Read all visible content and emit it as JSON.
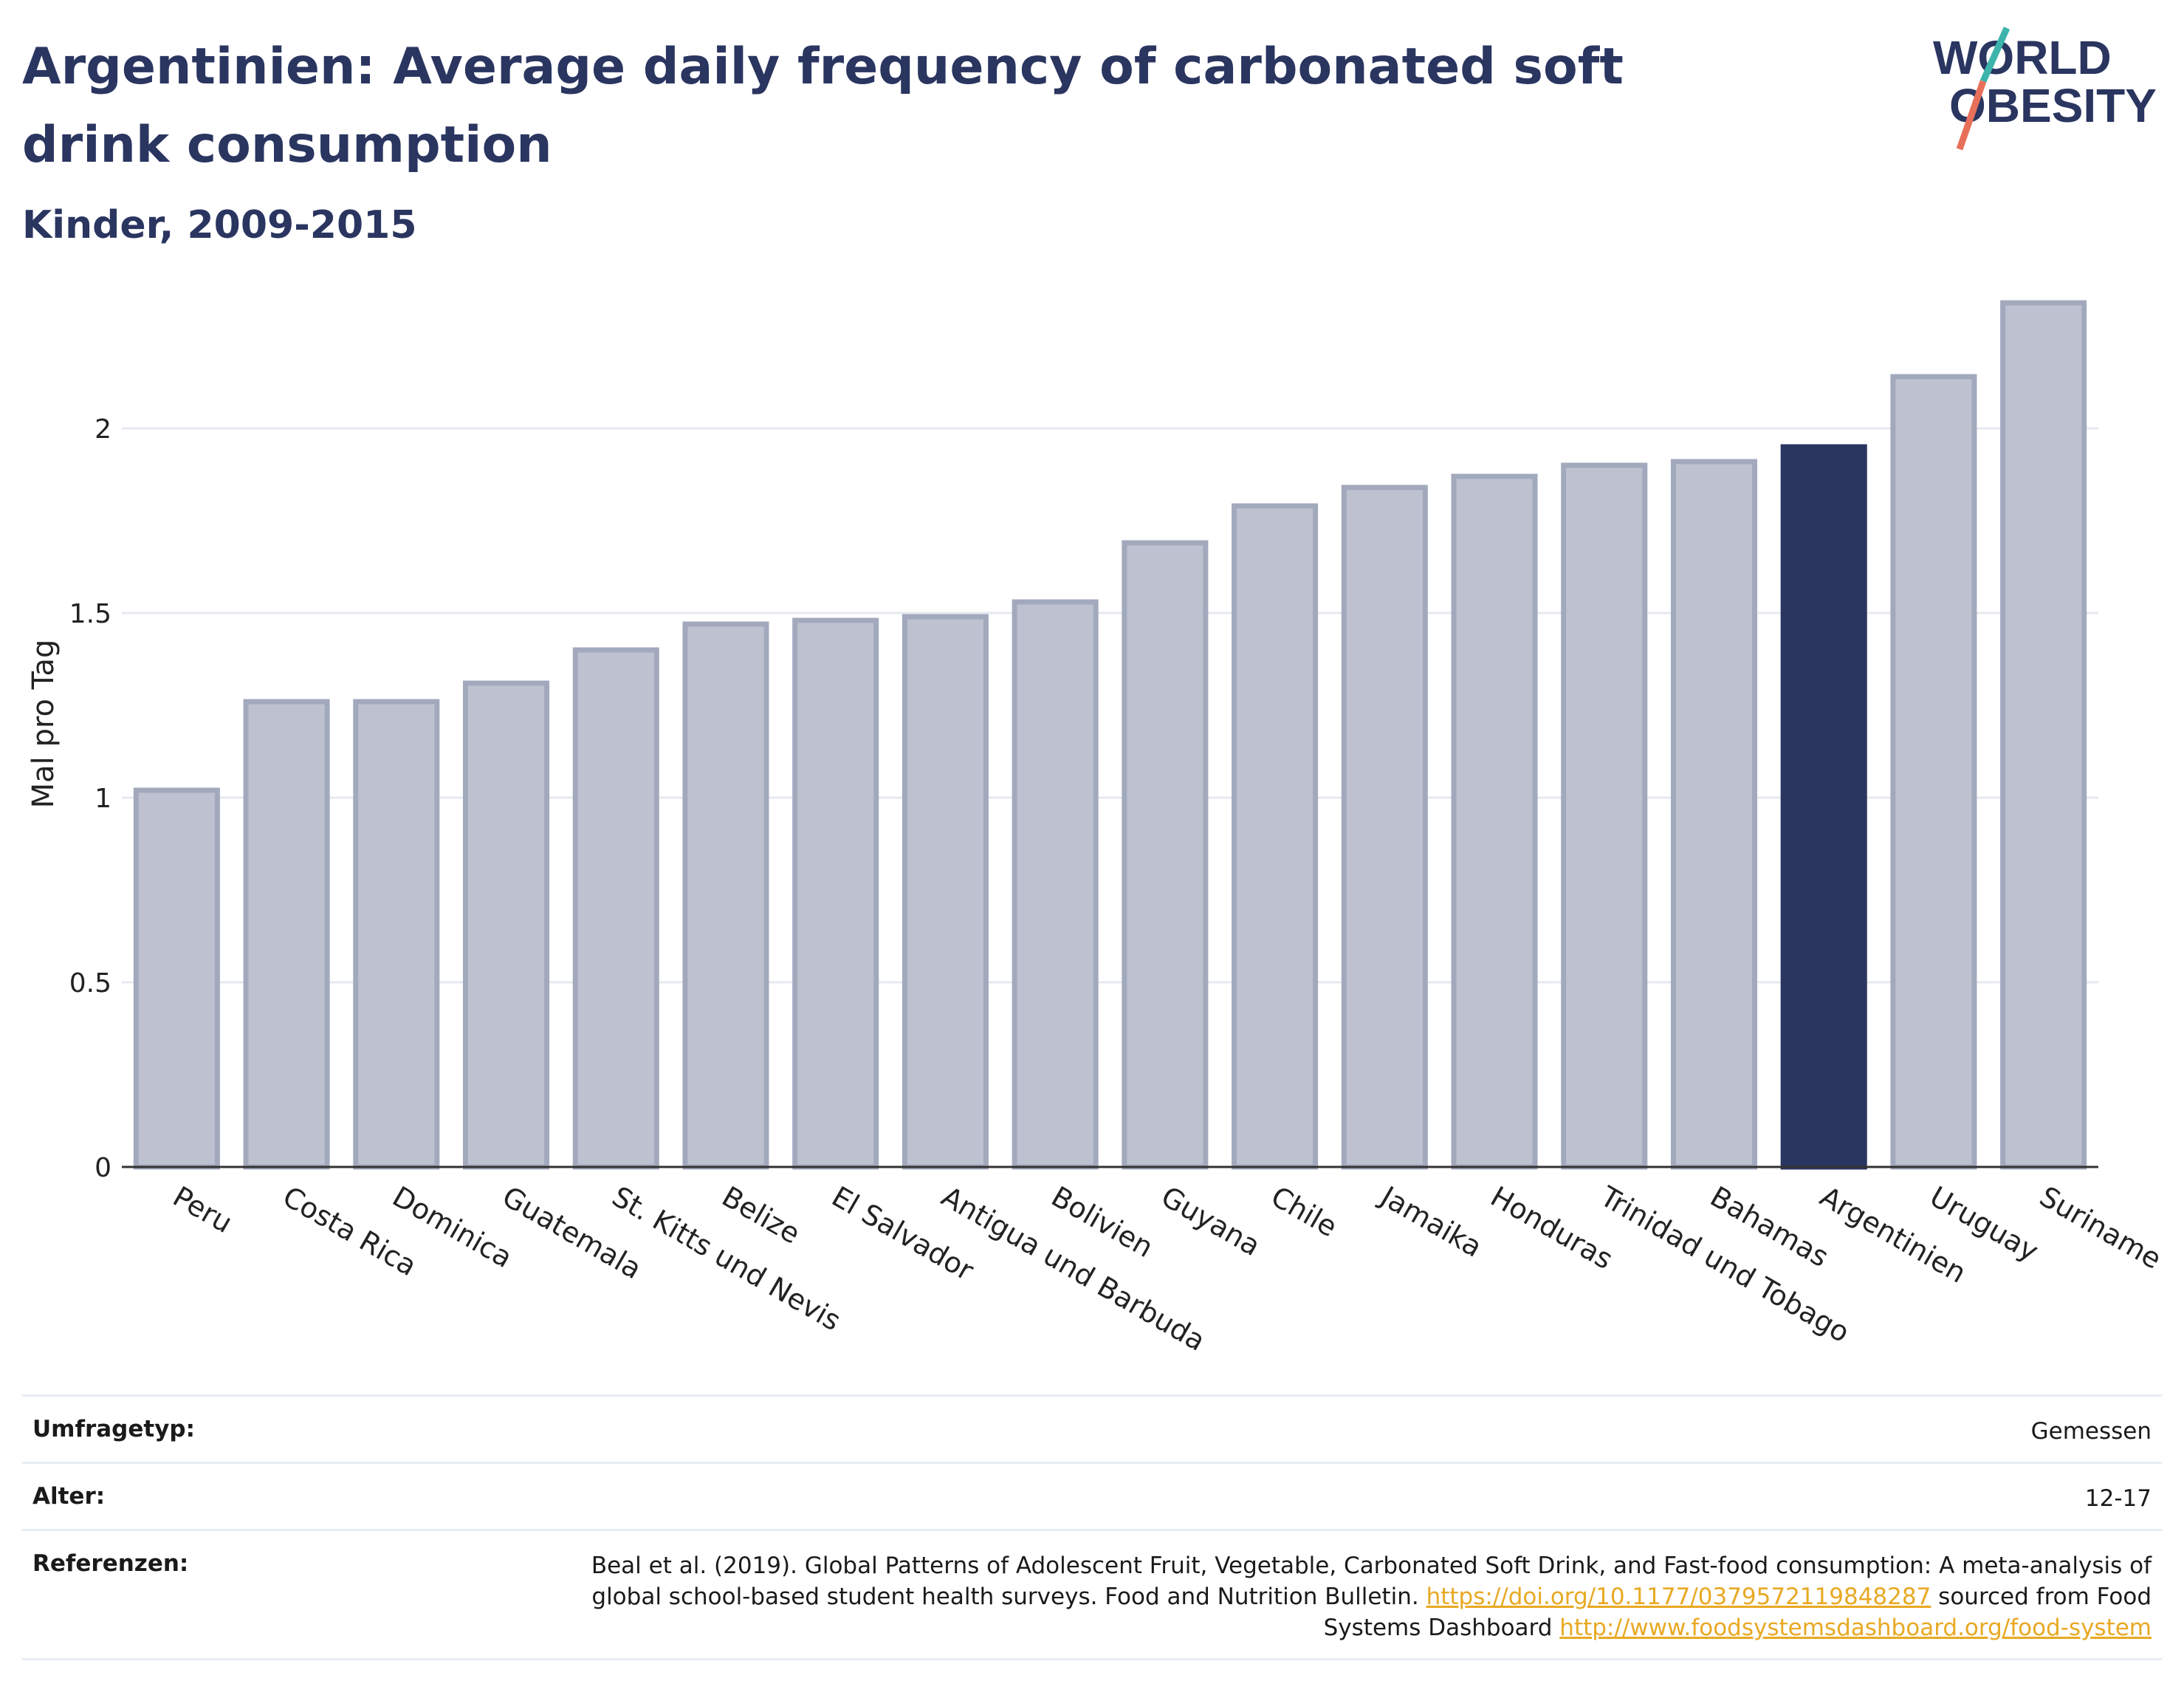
{
  "header": {
    "title": "Argentinien: Average daily frequency of carbonated soft drink consumption",
    "subtitle": "Kinder, 2009-2015",
    "logo_text_line1": "WORLD",
    "logo_text_line2": "OBESITY"
  },
  "colors": {
    "bar_default": "#bec2d0",
    "bar_default_border": "#a3a9bd",
    "bar_highlight": "#2a3560",
    "title": "#2a3560",
    "link": "#e8a923",
    "logo_teal": "#3cb4ac",
    "logo_coral": "#e8705a"
  },
  "chart_data": {
    "type": "bar",
    "categories": [
      "Peru",
      "Costa Rica",
      "Dominica",
      "Guatemala",
      "St. Kitts und Nevis",
      "Belize",
      "El Salvador",
      "Antigua und Barbuda",
      "Bolivien",
      "Guyana",
      "Chile",
      "Jamaika",
      "Honduras",
      "Trinidad und Tobago",
      "Bahamas",
      "Argentinien",
      "Uruguay",
      "Suriname"
    ],
    "values": [
      1.02,
      1.26,
      1.26,
      1.31,
      1.4,
      1.47,
      1.48,
      1.49,
      1.53,
      1.69,
      1.79,
      1.84,
      1.87,
      1.9,
      1.91,
      1.95,
      2.14,
      2.34
    ],
    "highlight": "Argentinien",
    "title": "Argentinien: Average daily frequency of carbonated soft drink consumption",
    "subtitle": "Kinder, 2009-2015",
    "xlabel": "",
    "ylabel": "Mal pro Tag",
    "ylim": [
      0,
      2.4
    ],
    "yticks": [
      0,
      0.5,
      1,
      1.5,
      2
    ],
    "ytick_labels": [
      "0",
      "0.5",
      "1",
      "1.5",
      "2"
    ],
    "grid": true,
    "legend": "none"
  },
  "meta": {
    "survey_label": "Umfragetyp:",
    "survey_value": "Gemessen",
    "age_label": "Alter:",
    "age_value": "12-17",
    "ref_label": "Referenzen:",
    "ref_text1": "Beal et al. (2019). Global Patterns of Adolescent Fruit, Vegetable, Carbonated Soft Drink, and Fast-food consumption: A meta-analysis of global school-based student health surveys. Food and Nutrition Bulletin. ",
    "ref_link1": "https://doi.org/10.1177/0379572119848287",
    "ref_text2": " sourced from Food Systems Dashboard ",
    "ref_link2": "http://www.foodsystemsdashboard.org/food-system"
  }
}
